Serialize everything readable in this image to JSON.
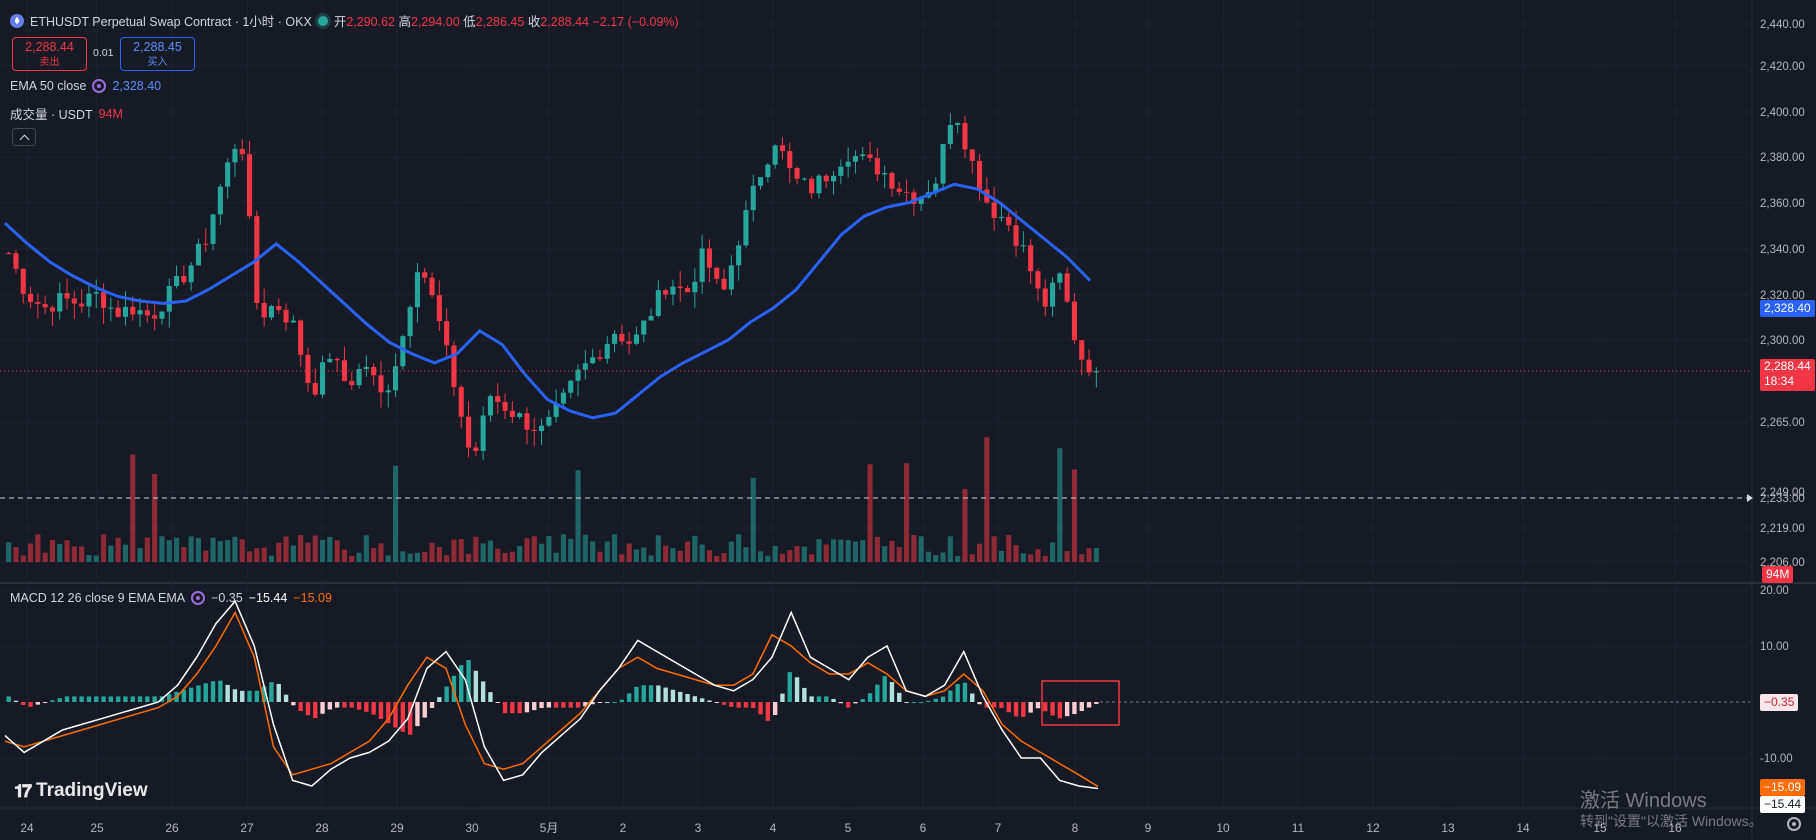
{
  "header": {
    "title": "ETHUSDT Perpetual Swap Contract · 1小时 · OKX",
    "ohlc": [
      {
        "k": "开",
        "v": "2,290.62"
      },
      {
        "k": "高",
        "v": "2,294.00"
      },
      {
        "k": "低",
        "v": "2,286.45"
      },
      {
        "k": "收",
        "v": "2,288.44"
      }
    ],
    "change": "−2.17 (−0.09%)"
  },
  "trade": {
    "sell_price": "2,288.44",
    "sell_label": "卖出",
    "spread": "0.01",
    "buy_price": "2,288.45",
    "buy_label": "买入"
  },
  "indicators": {
    "ema_label": "EMA 50 close",
    "ema_value": "2,328.40",
    "volume_label": "成交量 · USDT",
    "volume_value": "94M",
    "macd_label": "MACD 12 26 close 9 EMA EMA",
    "macd_hist": "−0.35",
    "macd_line": "−15.44",
    "macd_signal": "−15.09"
  },
  "price_axis": {
    "ticks": [
      "2,440.00",
      "2,420.00",
      "2,400.00",
      "2,380.00",
      "2,360.00",
      "2,340.00",
      "2,320.00",
      "2,300.00",
      "2,265.00",
      "2,249.00",
      "2,233.00",
      "2,219.00",
      "2,206.00"
    ],
    "ema_tag": "2,328.40",
    "last_price_tag": "2,288.44",
    "countdown": "18:34",
    "volume_tag": "94M"
  },
  "macd_axis": {
    "ticks": [
      "20.00",
      "10.00",
      "-10.00"
    ],
    "hist_tag": "−0.35",
    "signal_tag": "−15.09",
    "macd_tag": "−15.44"
  },
  "time_axis": [
    "24",
    "25",
    "26",
    "27",
    "28",
    "29",
    "30",
    "5月",
    "2",
    "3",
    "4",
    "5",
    "6",
    "7",
    "8",
    "9",
    "10",
    "11",
    "12",
    "13",
    "14",
    "15",
    "16"
  ],
  "branding": {
    "logo_text": "TradingView"
  },
  "watermark": {
    "line1": "激活 Windows",
    "line2": "转到\"设置\"以激活 Windows。"
  },
  "colors": {
    "background": "#161a25",
    "up": "#26a69a",
    "down": "#f23645",
    "ema": "#2962ff",
    "macd_line": "#ffffff",
    "signal_line": "#ff6d00",
    "highlight_box": "#f23645"
  },
  "chart_data": [
    {
      "type": "candlestick",
      "title": "ETHUSDT Perpetual Swap Contract · 1小时 · OKX",
      "x_labels": [
        "24",
        "25",
        "26",
        "27",
        "28",
        "29",
        "30",
        "5月",
        "2",
        "3",
        "4",
        "5",
        "6",
        "7",
        "8"
      ],
      "ylim": [
        2200,
        2445
      ],
      "horizontal_line": 2233,
      "last_price": 2288.44,
      "close_path": [
        2340,
        2322,
        2316,
        2320,
        2318,
        2322,
        2314,
        2316,
        2312,
        2322,
        2332,
        2345,
        2372,
        2394,
        2312,
        2318,
        2308,
        2278,
        2296,
        2282,
        2292,
        2276,
        2300,
        2338,
        2314,
        2282,
        2248,
        2278,
        2272,
        2266,
        2262,
        2274,
        2288,
        2296,
        2306,
        2300,
        2314,
        2328,
        2322,
        2340,
        2320,
        2348,
        2372,
        2390,
        2372,
        2368,
        2375,
        2384,
        2380,
        2376,
        2368,
        2364,
        2372,
        2405,
        2380,
        2360,
        2354,
        2340,
        2316,
        2330,
        2296,
        2288
      ],
      "ema": {
        "name": "EMA 50 close",
        "values": [
          2353,
          2344,
          2336,
          2330,
          2325,
          2321,
          2319,
          2318,
          2319,
          2324,
          2330,
          2336,
          2344,
          2336,
          2327,
          2318,
          2309,
          2301,
          2296,
          2292,
          2296,
          2306,
          2300,
          2287,
          2276,
          2271,
          2268,
          2270,
          2278,
          2286,
          2292,
          2297,
          2302,
          2310,
          2316,
          2324,
          2336,
          2348,
          2356,
          2360,
          2362,
          2366,
          2370,
          2368,
          2362,
          2354,
          2346,
          2338,
          2328
        ]
      },
      "volume": {
        "name": "成交量 · USDT",
        "last": "94M"
      }
    },
    {
      "type": "macd",
      "name": "MACD 12 26 close 9 EMA EMA",
      "ylim": [
        -17,
        21
      ],
      "macd": [
        -6,
        -9,
        -7,
        -5,
        -4,
        -3,
        -2,
        -1,
        0,
        3,
        8,
        14,
        18,
        10,
        -4,
        -14,
        -15,
        -12,
        -10,
        -9,
        -7,
        -3,
        6,
        9,
        4,
        -8,
        -14,
        -13,
        -9,
        -6,
        -3,
        2,
        6,
        11,
        9,
        7,
        5,
        3,
        2,
        4,
        8,
        16,
        8,
        6,
        4,
        8,
        10,
        2,
        1,
        3,
        9,
        1,
        -5,
        -10,
        -10,
        -14,
        -15,
        -15.44
      ],
      "signal": [
        -7,
        -8,
        -7,
        -6,
        -5,
        -4,
        -3,
        -2,
        -1,
        1,
        5,
        10,
        16,
        8,
        -8,
        -13,
        -12,
        -11,
        -9,
        -7,
        -3,
        3,
        8,
        6,
        -4,
        -11,
        -12,
        -11,
        -8,
        -5,
        -2,
        2,
        6,
        8,
        6,
        5,
        4,
        3,
        3,
        5,
        12,
        10,
        7,
        5,
        5,
        7,
        5,
        2,
        1,
        2,
        5,
        2,
        -4,
        -7,
        -9,
        -11,
        -13,
        -15.09
      ],
      "histogram_last": -0.35
    }
  ]
}
